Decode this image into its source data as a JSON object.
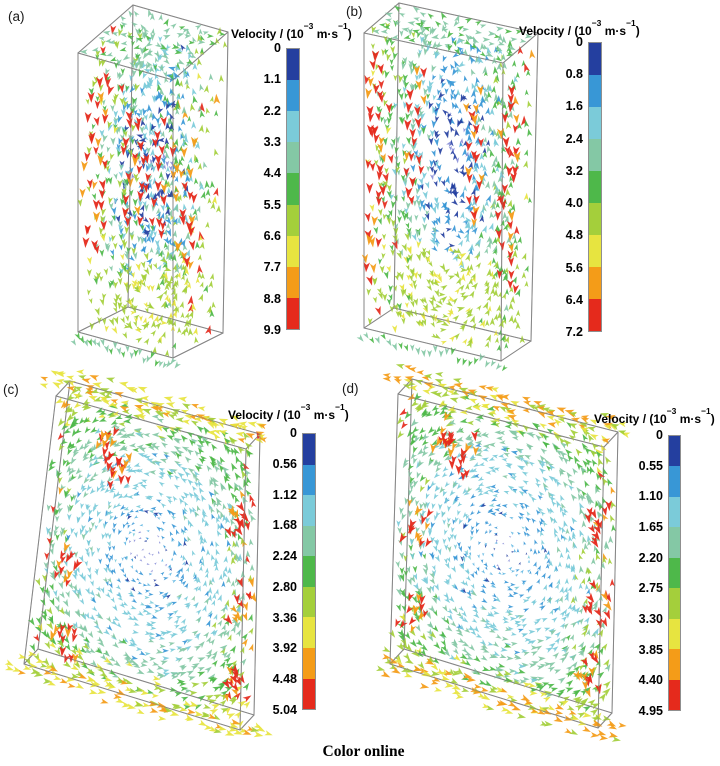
{
  "figure": {
    "footer_note": "Color online",
    "colorbar": {
      "title": {
        "prefix": "Velocity / (10",
        "exp1": "−3",
        "mid": " m·s",
        "exp2": "−1",
        "suffix": ")"
      },
      "title_text": "Velocity / (10⁻³ m·s⁻¹)",
      "band_colors": [
        "#243f9f",
        "#3897d6",
        "#7bcbd9",
        "#84c8a5",
        "#4eb84a",
        "#a4cf3b",
        "#e7e440",
        "#f49c18",
        "#e52a1c"
      ],
      "aux_colors": {
        "vortex_core": "#8a8fd8",
        "inner_ring": "#5fb6e2"
      },
      "border_color": "#8f8f8f"
    },
    "panels": [
      {
        "id": "a",
        "label": "(a)",
        "shape": "tall rectangular prism",
        "ticks": [
          "0",
          "1.1",
          "2.2",
          "3.3",
          "4.4",
          "5.5",
          "6.6",
          "7.7",
          "8.8",
          "9.9"
        ]
      },
      {
        "id": "b",
        "label": "(b)",
        "shape": "tall rectangular prism",
        "ticks": [
          "0",
          "0.8",
          "1.6",
          "2.4",
          "3.2",
          "4.0",
          "4.8",
          "5.6",
          "6.4",
          "7.2"
        ]
      },
      {
        "id": "c",
        "label": "(c)",
        "shape": "thin vertical slab",
        "ticks": [
          "0",
          "0.56",
          "1.12",
          "1.68",
          "2.24",
          "2.80",
          "3.36",
          "3.92",
          "4.48",
          "5.04"
        ]
      },
      {
        "id": "d",
        "label": "(d)",
        "shape": "thin vertical slab",
        "ticks": [
          "0",
          "0.55",
          "1.10",
          "1.65",
          "2.20",
          "2.75",
          "3.30",
          "3.85",
          "4.40",
          "4.95"
        ]
      }
    ]
  },
  "chart_data": [
    {
      "panel": "(a)",
      "type": "vector-field",
      "title": "Velocity / (10⁻³ m·s⁻¹)",
      "unit": "10⁻³ m·s⁻¹",
      "colorbar_ticks": [
        0,
        1.1,
        2.2,
        3.3,
        4.4,
        5.5,
        6.6,
        7.7,
        8.8,
        9.9
      ],
      "range": [
        0,
        9.9
      ],
      "tick_step": 1.1,
      "legend_position": "right",
      "geometry": "tall rectangular prism, 3D arrow plot",
      "features": "red high-velocity streaks along vertical edges and interior columns; dark-blue low-velocity central column; green walls; yellow-green zone near bottom; green radial fans on top and bottom faces"
    },
    {
      "panel": "(b)",
      "type": "vector-field",
      "title": "Velocity / (10⁻³ m·s⁻¹)",
      "unit": "10⁻³ m·s⁻¹",
      "colorbar_ticks": [
        0,
        0.8,
        1.6,
        2.4,
        3.2,
        4.0,
        4.8,
        5.6,
        6.4,
        7.2
      ],
      "range": [
        0,
        7.2
      ],
      "tick_step": 0.8,
      "legend_position": "right",
      "geometry": "tall rectangular prism, 3D arrow plot",
      "features": "red streaks along vertical edges; pale vortex core in upper middle; large yellow-green high-velocity blob near bottom; teal arrows over top face"
    },
    {
      "panel": "(c)",
      "type": "vector-field",
      "title": "Velocity / (10⁻³ m·s⁻¹)",
      "unit": "10⁻³ m·s⁻¹",
      "colorbar_ticks": [
        0,
        0.56,
        1.12,
        1.68,
        2.24,
        2.8,
        3.36,
        3.92,
        4.48,
        5.04
      ],
      "range": [
        0,
        5.04
      ],
      "tick_step": 0.56,
      "legend_position": "right",
      "geometry": "thin vertical slab, 3D arrow plot",
      "features": "central low-velocity vortex with pale purple core; cyan mid-field; green/yellow-green near edges; yellow-orange fringes along top and bottom edges; red jets near corners and side edges"
    },
    {
      "panel": "(d)",
      "type": "vector-field",
      "title": "Velocity / (10⁻³ m·s⁻¹)",
      "unit": "10⁻³ m·s⁻¹",
      "colorbar_ticks": [
        0,
        0.55,
        1.1,
        1.65,
        2.2,
        2.75,
        3.3,
        3.85,
        4.4,
        4.95
      ],
      "range": [
        0,
        4.95
      ],
      "tick_step": 0.55,
      "legend_position": "right",
      "geometry": "thin vertical slab, 3D arrow plot",
      "features": "central low-velocity vortex with pale purple core; cyan mid-field; strong orange fringes along top and bottom edges; red jets near corners and side edges"
    }
  ]
}
